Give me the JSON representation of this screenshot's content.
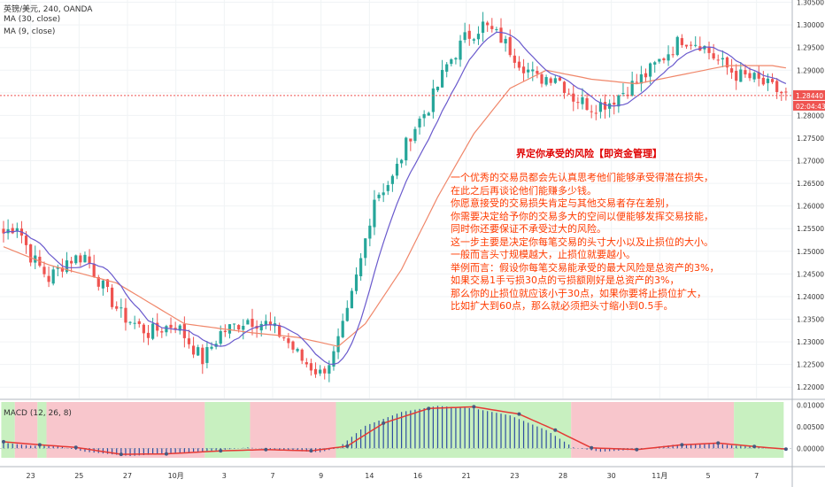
{
  "header": {
    "symbol_line": "英镑/美元, 240, OANDA",
    "ma30_label": "MA (30, close)",
    "ma9_label": "MA (9, close)",
    "macd_label": "MACD (12, 26, 8)"
  },
  "annotation": {
    "title": "界定你承受的风险【即资金管理】",
    "lines": [
      "一个优秀的交易员都会先认真思考他们能够承受得潜在损失，",
      "在此之后再谈论他们能赚多少钱。",
      "你愿意接受的交易损失肯定与其他交易者存在差别，",
      "你需要决定给予你的交易多大的空间以便能够发挥交易技能，",
      "同时你还要保证不承受过大的风险。",
      "这一步主要是决定你每笔交易的头寸大小以及止损位的大小。",
      "一般而言头寸规模越大，止损位就要越小。",
      "举例而言：假设你每笔交易能承受的最大风险是总资产的3%，",
      "如果交易1手亏损30点的亏损额刚好是总资产的3%，",
      "那么你的止损位就应该小于30点，如果你要将止损位扩大，",
      "比如扩大到60点，那么就必须把头寸缩小到0.5手。"
    ]
  },
  "price_tags": {
    "last_price": "1.28440",
    "countdown": "02:04:43"
  },
  "colors": {
    "up": "#26a69a",
    "down": "#ef5350",
    "ma30": "#f0876a",
    "ma9": "#6a5acd",
    "macd_hist": "#2f4ea0",
    "signal": "#e53935",
    "bg_bull": "#c8f0c0",
    "bg_bear": "#f8c6cc",
    "annotation_text": "#ff3b00",
    "annotation_title": "#e00000"
  },
  "chart_data": [
    {
      "type": "candlestick",
      "title": "",
      "x_tick_labels": [
        "23",
        "25",
        "27",
        "10月",
        "3",
        "7",
        "9",
        "14",
        "16",
        "21",
        "23",
        "28",
        "30",
        "11月",
        "5",
        "7"
      ],
      "y_tick_labels": [
        "1.30500",
        "1.30000",
        "1.29500",
        "1.29000",
        "1.28500",
        "1.28000",
        "1.27500",
        "1.27000",
        "1.26500",
        "1.26000",
        "1.25500",
        "1.25000",
        "1.24500",
        "1.24000",
        "1.23500",
        "1.23000",
        "1.22500",
        "1.22000"
      ],
      "ylim": [
        1.2175,
        1.3055
      ],
      "last_price": 1.2844,
      "anchors": [
        {
          "i": 0,
          "p": 1.254
        },
        {
          "i": 3,
          "p": 1.256
        },
        {
          "i": 6,
          "p": 1.249
        },
        {
          "i": 10,
          "p": 1.244
        },
        {
          "i": 14,
          "p": 1.248
        },
        {
          "i": 18,
          "p": 1.249
        },
        {
          "i": 22,
          "p": 1.242
        },
        {
          "i": 26,
          "p": 1.236
        },
        {
          "i": 32,
          "p": 1.232
        },
        {
          "i": 38,
          "p": 1.234
        },
        {
          "i": 44,
          "p": 1.226
        },
        {
          "i": 48,
          "p": 1.232
        },
        {
          "i": 54,
          "p": 1.235
        },
        {
          "i": 58,
          "p": 1.234
        },
        {
          "i": 62,
          "p": 1.231
        },
        {
          "i": 66,
          "p": 1.226
        },
        {
          "i": 70,
          "p": 1.223
        },
        {
          "i": 73,
          "p": 1.227
        },
        {
          "i": 76,
          "p": 1.236
        },
        {
          "i": 79,
          "p": 1.248
        },
        {
          "i": 82,
          "p": 1.262
        },
        {
          "i": 86,
          "p": 1.266
        },
        {
          "i": 90,
          "p": 1.276
        },
        {
          "i": 94,
          "p": 1.282
        },
        {
          "i": 98,
          "p": 1.291
        },
        {
          "i": 102,
          "p": 1.297
        },
        {
          "i": 106,
          "p": 1.3
        },
        {
          "i": 110,
          "p": 1.297
        },
        {
          "i": 114,
          "p": 1.292
        },
        {
          "i": 118,
          "p": 1.288
        },
        {
          "i": 122,
          "p": 1.289
        },
        {
          "i": 126,
          "p": 1.284
        },
        {
          "i": 130,
          "p": 1.282
        },
        {
          "i": 134,
          "p": 1.283
        },
        {
          "i": 138,
          "p": 1.286
        },
        {
          "i": 142,
          "p": 1.289
        },
        {
          "i": 146,
          "p": 1.293
        },
        {
          "i": 150,
          "p": 1.297
        },
        {
          "i": 154,
          "p": 1.296
        },
        {
          "i": 158,
          "p": 1.292
        },
        {
          "i": 162,
          "p": 1.289
        },
        {
          "i": 166,
          "p": 1.288
        },
        {
          "i": 170,
          "p": 1.286
        },
        {
          "i": 173,
          "p": 1.2844
        }
      ],
      "ma30_anchors": [
        {
          "i": 0,
          "p": 1.251
        },
        {
          "i": 10,
          "p": 1.247
        },
        {
          "i": 25,
          "p": 1.243
        },
        {
          "i": 40,
          "p": 1.234
        },
        {
          "i": 55,
          "p": 1.232
        },
        {
          "i": 65,
          "p": 1.231
        },
        {
          "i": 74,
          "p": 1.229
        },
        {
          "i": 80,
          "p": 1.234
        },
        {
          "i": 88,
          "p": 1.246
        },
        {
          "i": 96,
          "p": 1.262
        },
        {
          "i": 104,
          "p": 1.276
        },
        {
          "i": 112,
          "p": 1.286
        },
        {
          "i": 120,
          "p": 1.29
        },
        {
          "i": 130,
          "p": 1.288
        },
        {
          "i": 140,
          "p": 1.287
        },
        {
          "i": 150,
          "p": 1.289
        },
        {
          "i": 160,
          "p": 1.291
        },
        {
          "i": 170,
          "p": 1.291
        },
        {
          "i": 173,
          "p": 1.2905
        }
      ]
    },
    {
      "type": "macd",
      "title": "",
      "y_tick_labels": [
        "0.01000",
        "0.00500",
        "0.00000"
      ],
      "ylim": [
        -0.0022,
        0.0107
      ],
      "hist_anchors": [
        {
          "i": 0,
          "v": 0.0013
        },
        {
          "i": 6,
          "v": 0.0006
        },
        {
          "i": 12,
          "v": 0.0005
        },
        {
          "i": 18,
          "v": -0.0008
        },
        {
          "i": 28,
          "v": -0.0018
        },
        {
          "i": 38,
          "v": -0.0011
        },
        {
          "i": 48,
          "v": -0.0004
        },
        {
          "i": 54,
          "v": 0.0002
        },
        {
          "i": 60,
          "v": -0.0004
        },
        {
          "i": 70,
          "v": -0.0009
        },
        {
          "i": 74,
          "v": 0.0001
        },
        {
          "i": 80,
          "v": 0.0052
        },
        {
          "i": 88,
          "v": 0.0084
        },
        {
          "i": 96,
          "v": 0.0098
        },
        {
          "i": 104,
          "v": 0.0092
        },
        {
          "i": 112,
          "v": 0.0076
        },
        {
          "i": 120,
          "v": 0.0042
        },
        {
          "i": 126,
          "v": 0.0002
        },
        {
          "i": 132,
          "v": -0.0008
        },
        {
          "i": 140,
          "v": -0.0003
        },
        {
          "i": 148,
          "v": 0.0008
        },
        {
          "i": 156,
          "v": 0.0012
        },
        {
          "i": 162,
          "v": 0.0006
        },
        {
          "i": 168,
          "v": 0.0002
        },
        {
          "i": 173,
          "v": -0.0004
        }
      ],
      "signal_anchors": [
        {
          "i": 0,
          "v": 0.0015
        },
        {
          "i": 8,
          "v": 0.0008
        },
        {
          "i": 16,
          "v": 0.0002
        },
        {
          "i": 26,
          "v": -0.0014
        },
        {
          "i": 36,
          "v": -0.0013
        },
        {
          "i": 48,
          "v": -0.0006
        },
        {
          "i": 58,
          "v": -0.0003
        },
        {
          "i": 68,
          "v": -0.0006
        },
        {
          "i": 76,
          "v": 0.0005
        },
        {
          "i": 84,
          "v": 0.0058
        },
        {
          "i": 94,
          "v": 0.0092
        },
        {
          "i": 104,
          "v": 0.0096
        },
        {
          "i": 114,
          "v": 0.0079
        },
        {
          "i": 122,
          "v": 0.0042
        },
        {
          "i": 130,
          "v": 0.0001
        },
        {
          "i": 140,
          "v": -0.0003
        },
        {
          "i": 150,
          "v": 0.0008
        },
        {
          "i": 158,
          "v": 0.0012
        },
        {
          "i": 166,
          "v": 0.0004
        },
        {
          "i": 173,
          "v": -0.0002
        }
      ],
      "regime_bands": [
        {
          "from": 0,
          "to": 3,
          "state": "bull"
        },
        {
          "from": 3,
          "to": 8,
          "state": "bear"
        },
        {
          "from": 8,
          "to": 10,
          "state": "bull"
        },
        {
          "from": 10,
          "to": 45,
          "state": "bear"
        },
        {
          "from": 45,
          "to": 55,
          "state": "bull"
        },
        {
          "from": 55,
          "to": 74,
          "state": "bear"
        },
        {
          "from": 74,
          "to": 126,
          "state": "bull"
        },
        {
          "from": 126,
          "to": 162,
          "state": "bear"
        },
        {
          "from": 162,
          "to": 173,
          "state": "bull"
        }
      ]
    }
  ]
}
